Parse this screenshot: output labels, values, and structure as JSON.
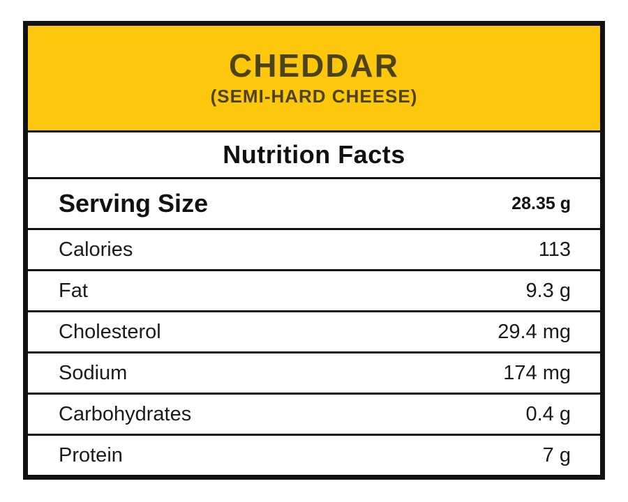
{
  "product": {
    "name": "CHEDDAR",
    "subtitle": "(SEMI-HARD CHEESE)"
  },
  "section_title": "Nutrition Facts",
  "serving": {
    "label": "Serving Size",
    "value": "28.35 g"
  },
  "rows": [
    {
      "label": "Calories",
      "value": "113"
    },
    {
      "label": "Fat",
      "value": "9.3 g"
    },
    {
      "label": "Cholesterol",
      "value": "29.4 mg"
    },
    {
      "label": "Sodium",
      "value": "174 mg"
    },
    {
      "label": "Carbohydrates",
      "value": "0.4 g"
    },
    {
      "label": "Protein",
      "value": "7 g"
    }
  ],
  "colors": {
    "accent_yellow": "#FDC70D",
    "header_text": "#4D4318",
    "border_black": "#111111"
  }
}
